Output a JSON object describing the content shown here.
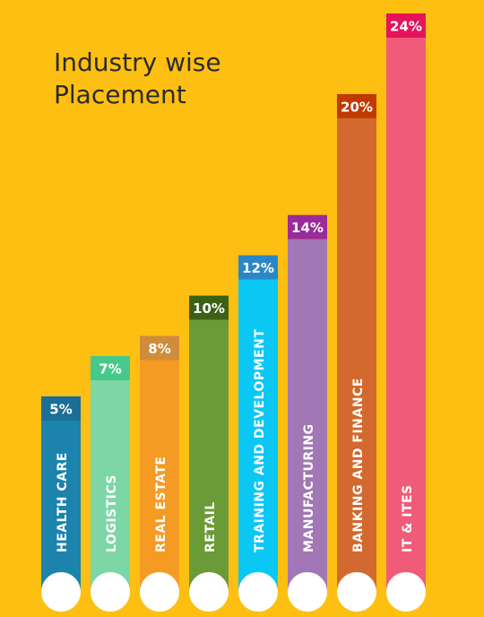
{
  "chart_data": {
    "type": "bar",
    "title_lines": [
      "Industry wise",
      "Placement"
    ],
    "categories": [
      "HEALTH CARE",
      "LOGISTICS",
      "REAL ESTATE",
      "RETAIL",
      "TRAINING AND DEVELOPMENT",
      "MANUFACTURING",
      "BANKING AND FINANCE",
      "IT & ITES"
    ],
    "values": [
      5,
      7,
      8,
      10,
      12,
      14,
      20,
      24
    ],
    "value_labels": [
      "5%",
      "7%",
      "8%",
      "10%",
      "12%",
      "14%",
      "20%",
      "24%"
    ],
    "unit": "%",
    "colors": [
      "#1B83AC",
      "#7DD6A6",
      "#F59A23",
      "#6A9B36",
      "#0BC7F4",
      "#A177B5",
      "#D2692F",
      "#F05B79"
    ],
    "label_colors": [
      "#1B6F96",
      "#48C98C",
      "#D08C3A",
      "#3C6116",
      "#2A86C7",
      "#9B2A9A",
      "#C03A00",
      "#E7125C"
    ],
    "background": "#FDBF12",
    "grid": false,
    "legend": "none"
  }
}
